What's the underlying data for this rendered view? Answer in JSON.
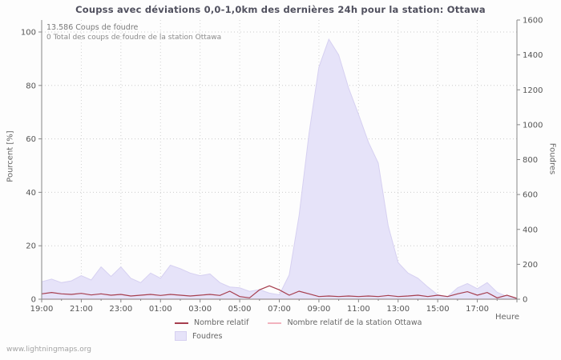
{
  "watermark": "www.lightningmaps.org",
  "annotations": {
    "line1": "13.586  Coups de foudre",
    "line2": "0 Total des coups de foudre de la station Ottawa"
  },
  "chart_data": {
    "type": "area",
    "title": "Coupss avec déviations 0,0-1,0km des dernières 24h pour la station: Ottawa",
    "xlabel": "Heure",
    "ylabel_left": "Pourcent  [%]",
    "ylabel_right": "Foudres",
    "ylim_left": [
      0,
      100
    ],
    "ylim_right": [
      0,
      1600
    ],
    "y_ticks_left": [
      0,
      20,
      40,
      60,
      80,
      100
    ],
    "y_ticks_right": [
      0,
      200,
      400,
      600,
      800,
      1000,
      1200,
      1400,
      1600
    ],
    "x_start_label": "19:00",
    "x_span_hours": 24,
    "x_tick_hours": [
      0,
      2,
      4,
      6,
      8,
      10,
      12,
      14,
      16,
      18,
      20,
      22
    ],
    "x_tick_labels": [
      "19:00",
      "21:00",
      "23:00",
      "01:00",
      "03:00",
      "05:00",
      "07:00",
      "09:00",
      "11:00",
      "13:00",
      "15:00",
      "17:00"
    ],
    "grid": true,
    "legend_position": "bottom",
    "x": [
      0,
      0.5,
      1,
      1.5,
      2,
      2.5,
      3,
      3.5,
      4,
      4.5,
      5,
      5.5,
      6,
      6.5,
      7,
      7.5,
      8,
      8.5,
      9,
      9.5,
      10,
      10.5,
      11,
      11.5,
      12,
      12.5,
      13,
      13.5,
      14,
      14.5,
      15,
      15.5,
      16,
      16.5,
      17,
      17.5,
      18,
      18.5,
      19,
      19.5,
      20,
      20.5,
      21,
      21.5,
      22,
      22.5,
      23,
      23.5,
      24
    ],
    "series": [
      {
        "name": "Foudres",
        "axis": "right",
        "style": "area",
        "color": "#e6e3f9",
        "edge_color": "#d6d0f1",
        "values": [
          100,
          115,
          95,
          105,
          135,
          110,
          185,
          130,
          185,
          120,
          95,
          150,
          120,
          195,
          175,
          150,
          135,
          145,
          95,
          70,
          65,
          45,
          55,
          35,
          25,
          140,
          480,
          950,
          1330,
          1490,
          1400,
          1210,
          1060,
          900,
          780,
          420,
          210,
          150,
          120,
          70,
          25,
          15,
          65,
          90,
          60,
          95,
          40,
          15,
          5
        ]
      },
      {
        "name": "Nombre relatif",
        "axis": "left",
        "style": "line",
        "color": "#a63e4e",
        "values": [
          2,
          2.5,
          2,
          1.8,
          2.2,
          1.6,
          2,
          1.5,
          1.8,
          1.2,
          1.5,
          1.8,
          1.4,
          1.8,
          1.5,
          1.2,
          1.5,
          1.8,
          1.4,
          3,
          1,
          0.5,
          3.5,
          5,
          3.5,
          1.5,
          3,
          2,
          1,
          1.2,
          1,
          1.2,
          1,
          1.2,
          1,
          1.4,
          1,
          1.2,
          1.5,
          1,
          1.5,
          1,
          2,
          2.8,
          1.5,
          2.5,
          0.5,
          1.5,
          0.3
        ]
      },
      {
        "name": "Nombre relatif de la station Ottawa",
        "axis": "left",
        "style": "line",
        "color": "#f2b3be",
        "values": [
          0,
          0,
          0,
          0,
          0,
          0,
          0,
          0,
          0,
          0,
          0,
          0,
          0,
          0,
          0,
          0,
          0,
          0,
          0,
          0,
          0,
          0,
          0,
          0,
          0,
          0,
          0,
          0,
          0,
          0,
          0,
          0,
          0,
          0,
          0,
          0,
          0,
          0,
          0,
          0,
          0,
          0,
          0,
          0,
          0,
          0,
          0,
          0,
          0
        ]
      }
    ]
  }
}
